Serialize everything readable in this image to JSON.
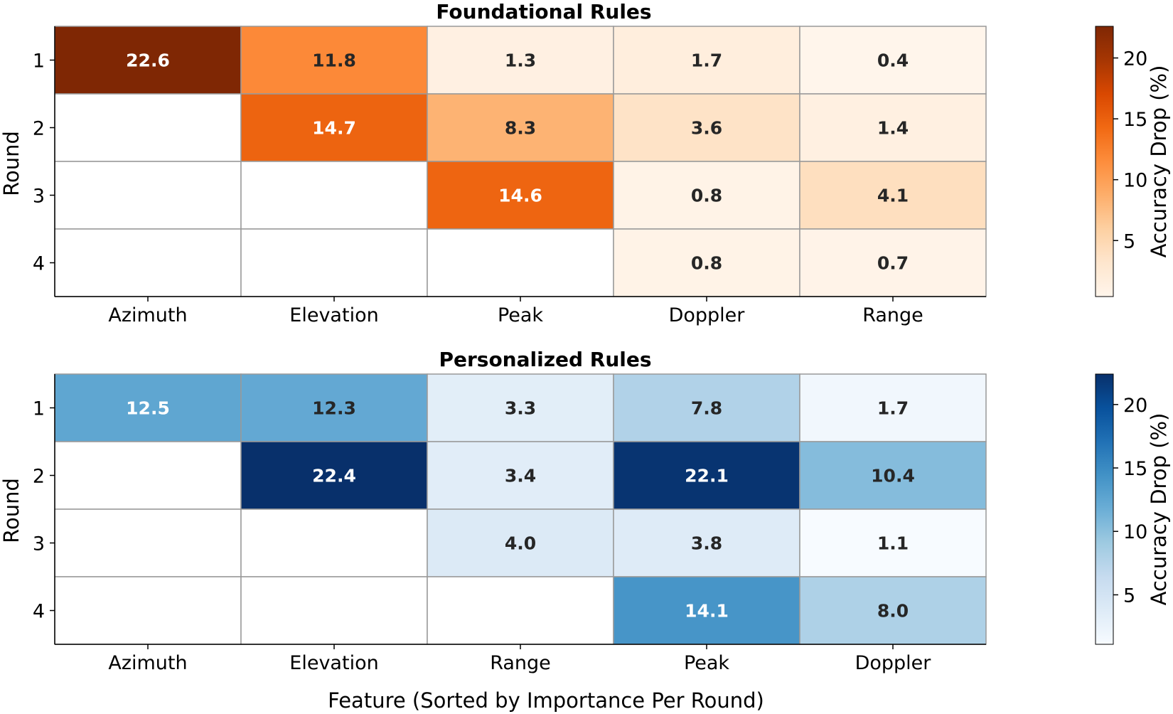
{
  "figure": {
    "xlabel": "Feature (Sorted by Importance Per Round)"
  },
  "chart_data": [
    {
      "type": "heatmap",
      "title": "Foundational Rules",
      "ylabel": "Round",
      "x_categories": [
        "Azimuth",
        "Elevation",
        "Peak",
        "Doppler",
        "Range"
      ],
      "y_categories": [
        "1",
        "2",
        "3",
        "4"
      ],
      "values": [
        [
          22.6,
          11.8,
          1.3,
          1.7,
          0.4
        ],
        [
          null,
          14.7,
          8.3,
          3.6,
          1.4
        ],
        [
          null,
          null,
          14.6,
          0.8,
          4.1
        ],
        [
          null,
          null,
          null,
          0.8,
          0.7
        ]
      ],
      "colormap": "Oranges",
      "colorbar": {
        "label": "Accuracy Drop (%)",
        "range": [
          0.4,
          22.6
        ],
        "ticks": [
          5,
          10,
          15,
          20
        ]
      }
    },
    {
      "type": "heatmap",
      "title": "Personalized Rules",
      "ylabel": "Round",
      "x_categories": [
        "Azimuth",
        "Elevation",
        "Range",
        "Peak",
        "Doppler"
      ],
      "y_categories": [
        "1",
        "2",
        "3",
        "4"
      ],
      "values": [
        [
          12.5,
          12.3,
          3.3,
          7.8,
          1.7
        ],
        [
          null,
          22.4,
          3.4,
          22.1,
          10.4
        ],
        [
          null,
          null,
          4.0,
          3.8,
          1.1
        ],
        [
          null,
          null,
          null,
          14.1,
          8.0
        ]
      ],
      "colormap": "Blues",
      "colorbar": {
        "label": "Accuracy Drop (%)",
        "range": [
          1.1,
          22.4
        ],
        "ticks": [
          5,
          10,
          15,
          20
        ]
      }
    }
  ]
}
